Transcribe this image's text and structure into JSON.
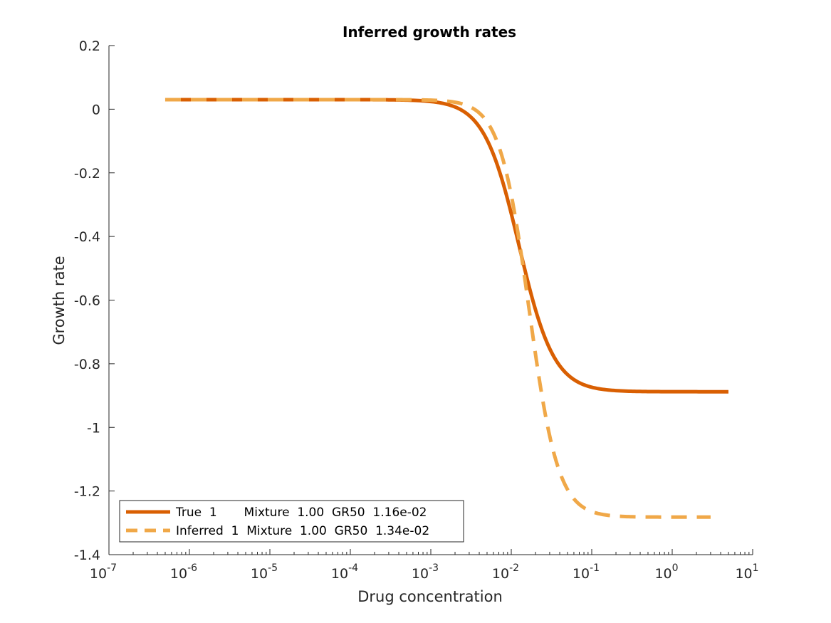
{
  "chart_data": {
    "type": "line",
    "title": "Inferred growth rates",
    "xlabel": "Drug concentration",
    "ylabel": "Growth rate",
    "xscale": "log",
    "xlim": [
      1e-07,
      10
    ],
    "ylim": [
      -1.4,
      0.2
    ],
    "grid": false,
    "legend_position": "bottom-left",
    "x_ticks": [
      {
        "base": "10",
        "exp": "-7"
      },
      {
        "base": "10",
        "exp": "-6"
      },
      {
        "base": "10",
        "exp": "-5"
      },
      {
        "base": "10",
        "exp": "-4"
      },
      {
        "base": "10",
        "exp": "-3"
      },
      {
        "base": "10",
        "exp": "-2"
      },
      {
        "base": "10",
        "exp": "-1"
      },
      {
        "base": "10",
        "exp": "0"
      },
      {
        "base": "10",
        "exp": "1"
      }
    ],
    "y_ticks": [
      "0.2",
      "0",
      "-0.2",
      "-0.4",
      "-0.6",
      "-0.8",
      "-1",
      "-1.2",
      "-1.4"
    ],
    "series": [
      {
        "name": "True  1       Mixture  1.00  GR50  1.16e-02",
        "style": "solid",
        "color": "#d95f02",
        "model": {
          "top": 0.03,
          "bottom": -0.888,
          "ec50": 0.0125,
          "hill": 2.0
        },
        "x_range": [
          5e-07,
          5
        ]
      },
      {
        "name": "Inferred  1  Mixture  1.00  GR50  1.34e-02",
        "style": "dashed",
        "color": "#f0a848",
        "model": {
          "top": 0.03,
          "bottom": -1.282,
          "ec50": 0.0166,
          "hill": 2.4
        },
        "x_range": [
          5e-07,
          3
        ]
      }
    ],
    "sample_points": [
      {
        "x": 5e-07,
        "true": 0.03,
        "inferred": 0.03
      },
      {
        "x": 0.001,
        "true": 0.03,
        "inferred": 0.03
      },
      {
        "x": 0.01,
        "true": -0.39,
        "inferred": -0.4
      },
      {
        "x": 0.1,
        "true": -0.885,
        "inferred": -1.27
      },
      {
        "x": 1,
        "true": -0.888,
        "inferred": -1.28
      },
      {
        "x": 5,
        "true": -0.888,
        "inferred": null
      }
    ]
  }
}
